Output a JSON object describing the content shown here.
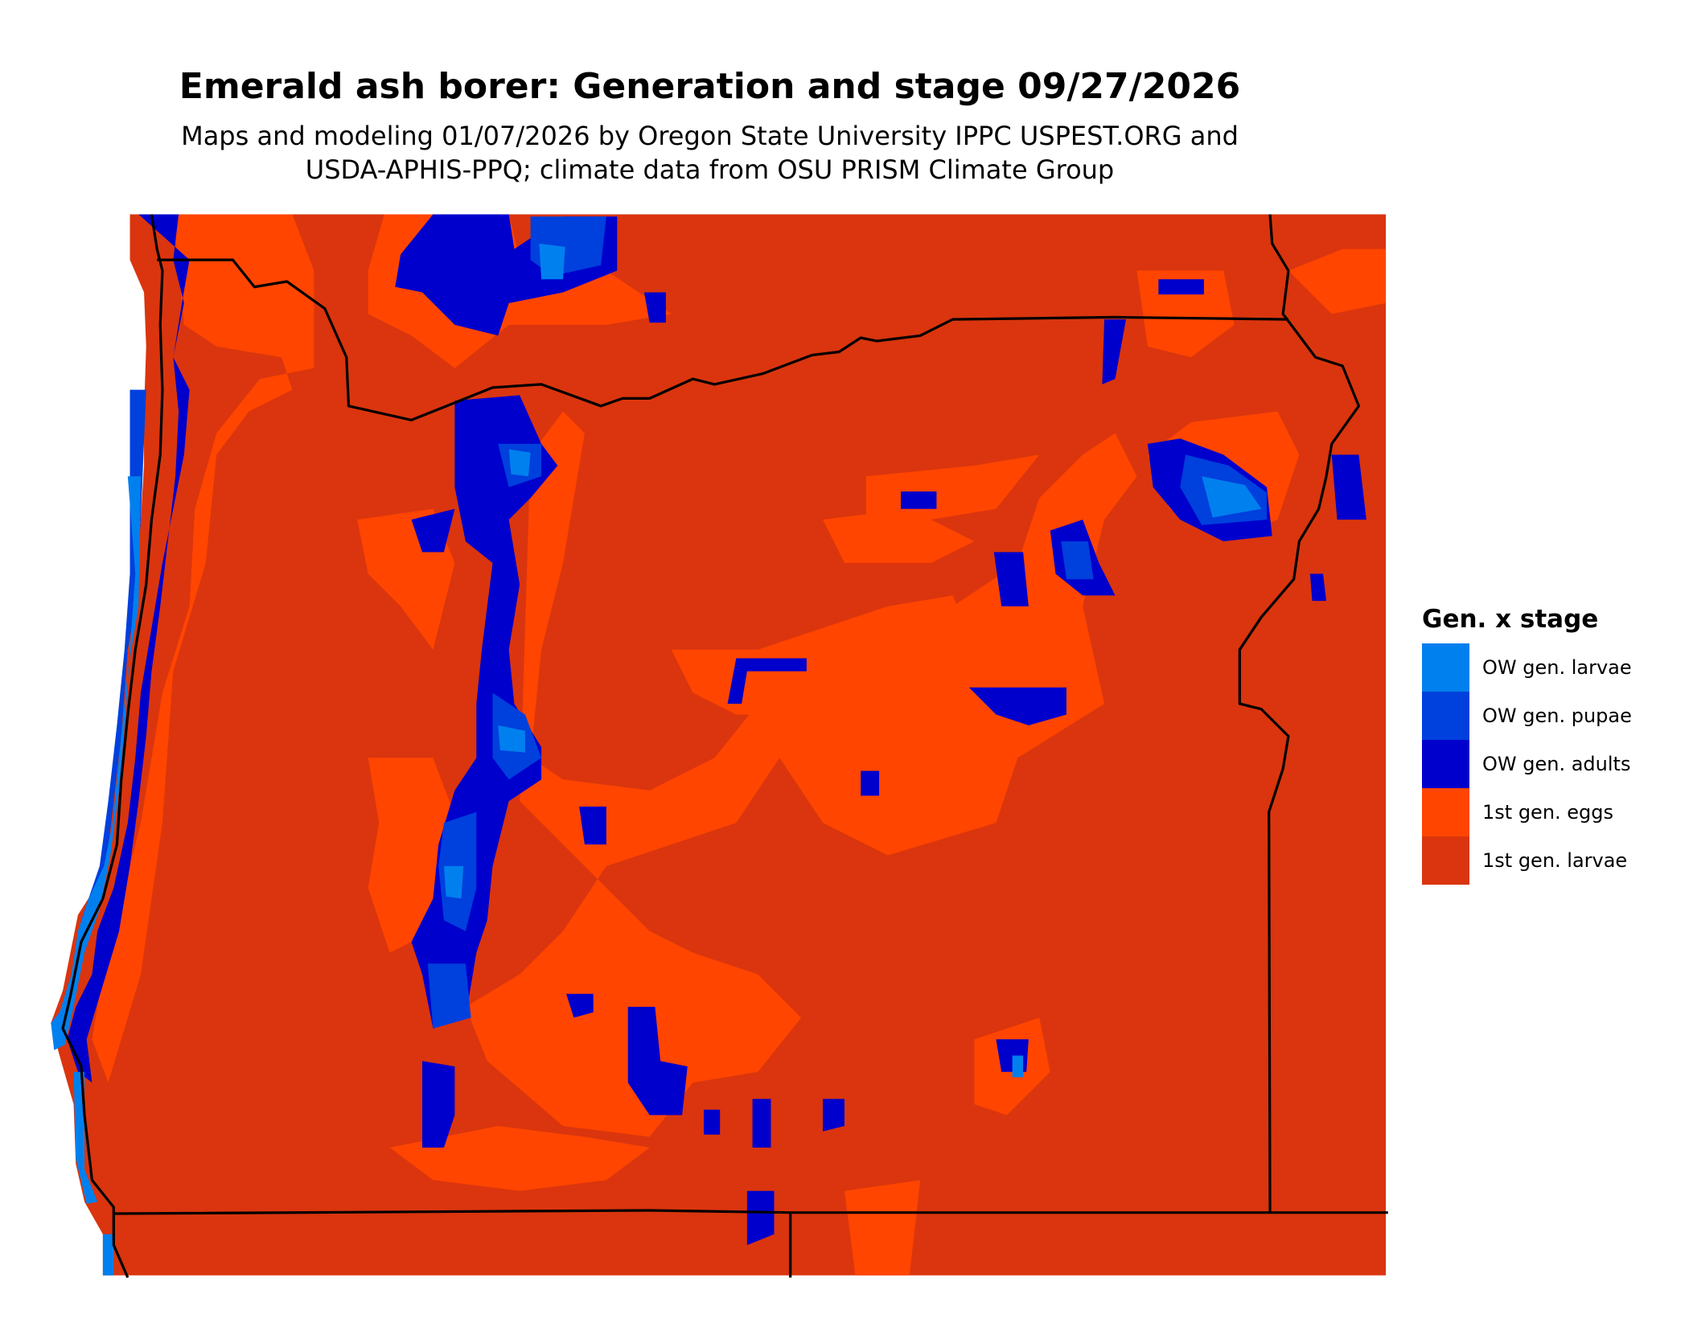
{
  "title": "Emerald ash borer: Generation and stage 09/27/2026",
  "subtitle_line1": "Maps and modeling 01/07/2026 by Oregon State University IPPC USPEST.ORG and",
  "subtitle_line2": "USDA-APHIS-PPQ; climate data from OSU PRISM Climate Group",
  "legend": {
    "title": "Gen. x stage",
    "items": [
      {
        "label": "OW gen. larvae",
        "color": "#0080EE"
      },
      {
        "label": "OW gen. pupae",
        "color": "#0040DD"
      },
      {
        "label": "OW gen. adults",
        "color": "#0000CC"
      },
      {
        "label": "1st gen. eggs",
        "color": "#FF4500"
      },
      {
        "label": "1st gen. larvae",
        "color": "#DA350E"
      }
    ]
  },
  "map": {
    "region": "Oregon",
    "boundaries": [
      "state borders",
      "coastline"
    ]
  }
}
